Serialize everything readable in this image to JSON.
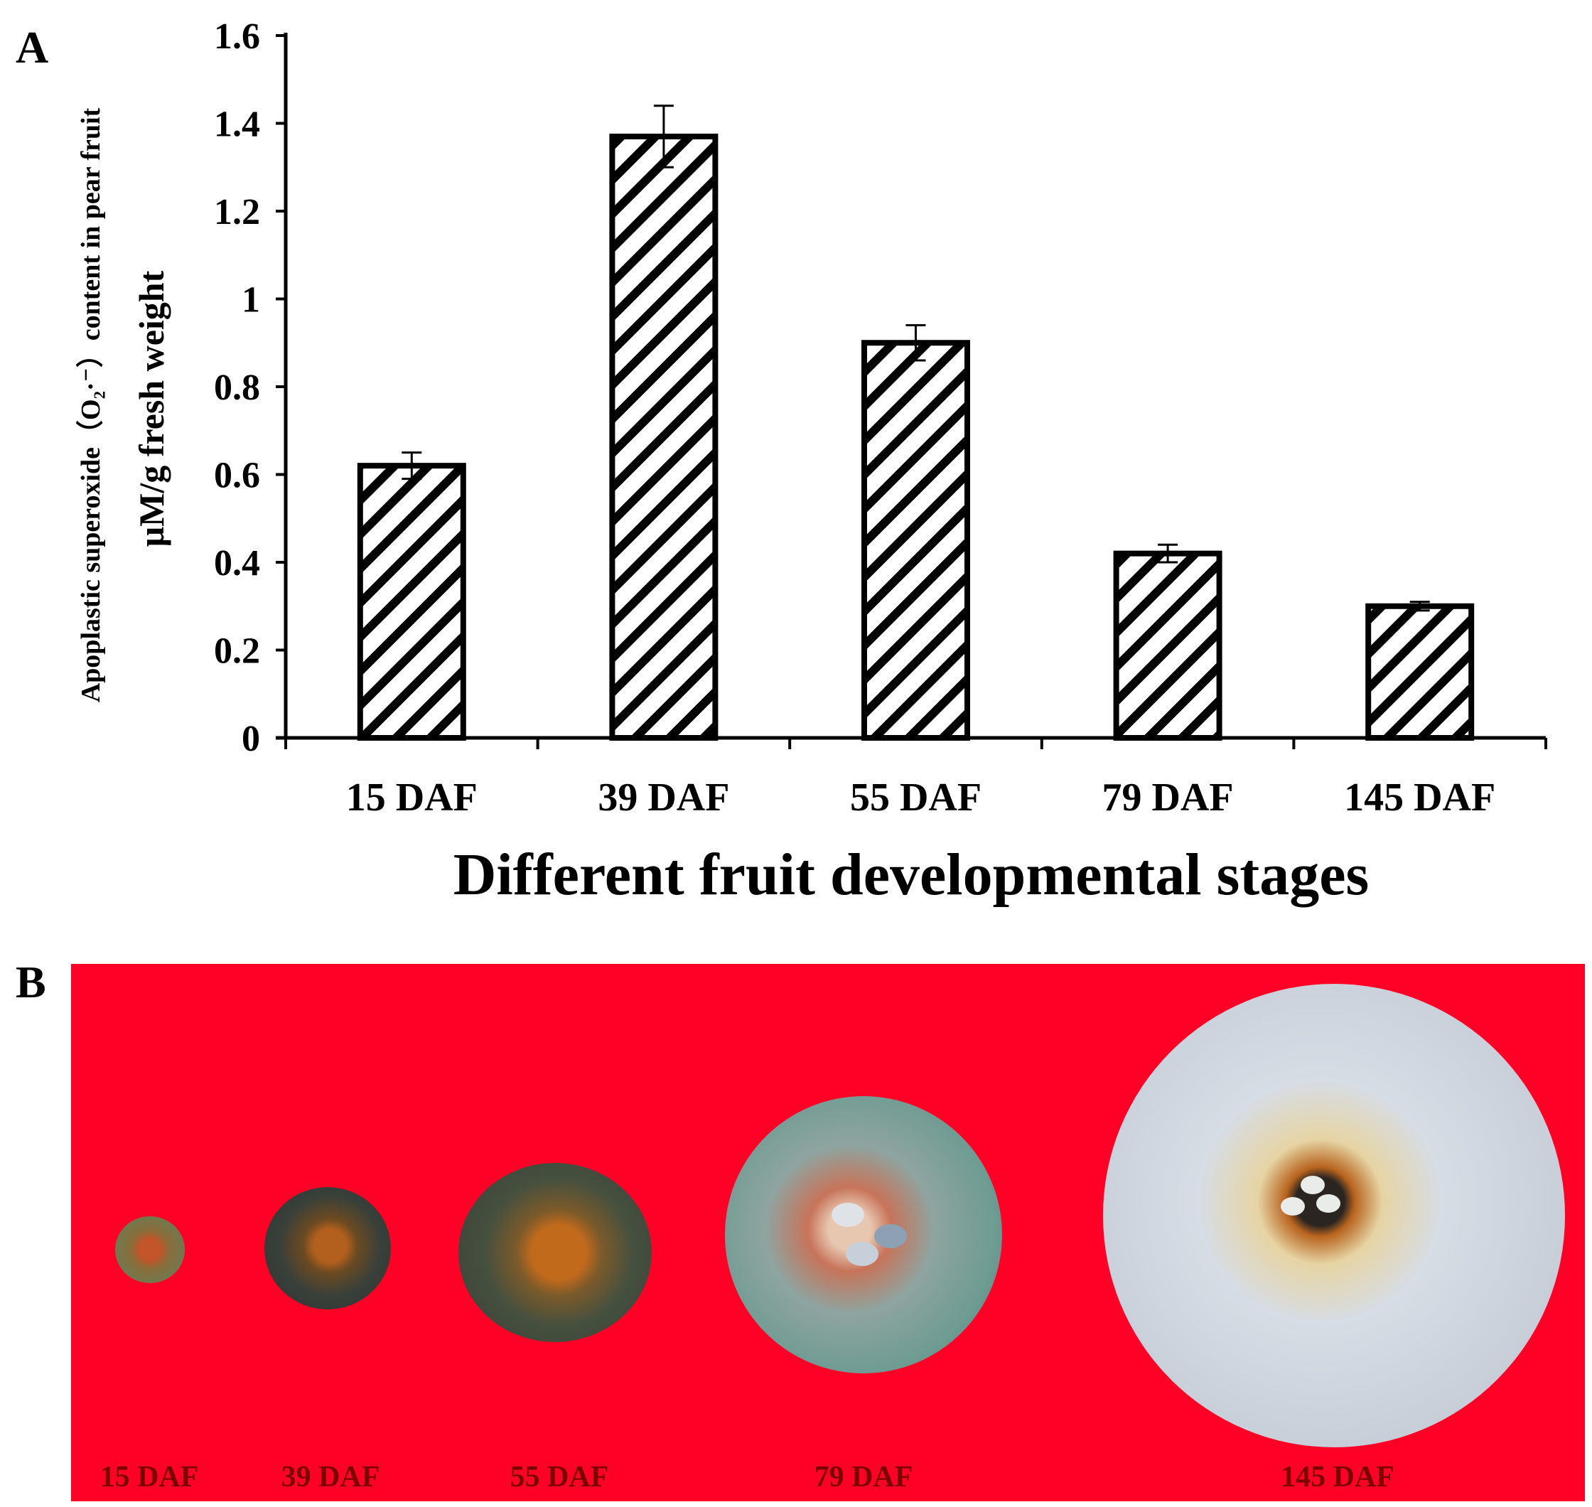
{
  "panels": {
    "a_label": "A",
    "b_label": "B"
  },
  "chart_data": {
    "type": "bar",
    "categories": [
      "15 DAF",
      "39 DAF",
      "55 DAF",
      "79 DAF",
      "145 DAF"
    ],
    "values": [
      0.62,
      1.37,
      0.9,
      0.42,
      0.3
    ],
    "errors": [
      0.03,
      0.07,
      0.04,
      0.02,
      0.01
    ],
    "ylabel_line1": "Apoplastic superoxide（O₂·⁻）content in pear fruit",
    "ylabel_line2": "μM/g fresh weight",
    "xlabel": "Different fruit developmental stages",
    "yticks": [
      "0",
      "0.2",
      "0.4",
      "0.6",
      "0.8",
      "1",
      "1.2",
      "1.4",
      "1.6"
    ],
    "ylim": [
      0,
      1.6
    ],
    "fill": "diagonal-hatch",
    "grid": false
  },
  "photo_panel": {
    "background": "#ff0026",
    "labels": [
      "15 DAF",
      "39 DAF",
      "55 DAF",
      "79 DAF",
      "145 DAF"
    ]
  }
}
